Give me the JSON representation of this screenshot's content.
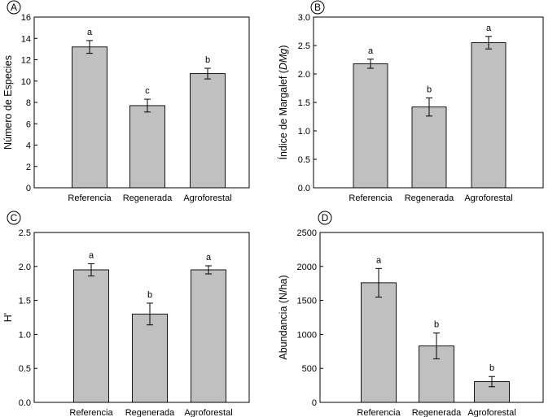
{
  "chart_data": [
    {
      "panel": "A",
      "type": "bar",
      "categories": [
        "Referencia",
        "Regenerada",
        "Agroforestal"
      ],
      "values": [
        13.2,
        7.7,
        10.7
      ],
      "errors": [
        0.6,
        0.6,
        0.5
      ],
      "significance": [
        "a",
        "c",
        "b"
      ],
      "ylabel": "Número de Especies",
      "ylabel_italic_part": "",
      "ylabel_suffix": "",
      "ylim": [
        0,
        16
      ],
      "yticks": [
        0,
        2,
        4,
        6,
        8,
        10,
        12,
        14,
        16
      ],
      "ytick_labels": [
        "0",
        "2",
        "4",
        "6",
        "8",
        "10",
        "12",
        "14",
        "16"
      ],
      "bar_color": "#c0c0c0"
    },
    {
      "panel": "B",
      "type": "bar",
      "categories": [
        "Referencia",
        "Regenerada",
        "Agroforestal"
      ],
      "values": [
        2.18,
        1.42,
        2.55
      ],
      "errors": [
        0.08,
        0.16,
        0.11
      ],
      "significance": [
        "a",
        "b",
        "a"
      ],
      "ylabel": "Índice de Margalef (",
      "ylabel_italic_part": "DMg",
      "ylabel_suffix": ")",
      "ylim": [
        0,
        3
      ],
      "yticks": [
        0,
        0.5,
        1,
        1.5,
        2,
        2.5,
        3
      ],
      "ytick_labels": [
        "0.0",
        "0.5",
        "1.0",
        "1.5",
        "2.0",
        "2.5",
        "3.0"
      ],
      "bar_color": "#c0c0c0"
    },
    {
      "panel": "C",
      "type": "bar",
      "categories": [
        "Referencia",
        "Regenerada",
        "Agroforestal"
      ],
      "values": [
        1.95,
        1.3,
        1.95
      ],
      "errors": [
        0.09,
        0.16,
        0.06
      ],
      "significance": [
        "a",
        "b",
        "a"
      ],
      "ylabel": "H'",
      "ylabel_italic_part": "",
      "ylabel_suffix": "",
      "ylim": [
        0,
        2.5
      ],
      "yticks": [
        0,
        0.5,
        1,
        1.5,
        2,
        2.5
      ],
      "ytick_labels": [
        "0.0",
        "0.5",
        "1.0",
        "1.5",
        "2.0",
        "2.5"
      ],
      "bar_color": "#c0c0c0"
    },
    {
      "panel": "D",
      "type": "bar",
      "categories": [
        "Referencia",
        "Regenerada",
        "Agroforestal"
      ],
      "values": [
        1760,
        830,
        305
      ],
      "errors": [
        210,
        190,
        75
      ],
      "significance": [
        "a",
        "b",
        "b"
      ],
      "ylabel": "Abundancia (N/ha)",
      "ylabel_italic_part": "",
      "ylabel_suffix": "",
      "ylim": [
        0,
        2500
      ],
      "yticks": [
        0,
        500,
        1000,
        1500,
        2000,
        2500
      ],
      "ytick_labels": [
        "0",
        "500",
        "1000",
        "1500",
        "2000",
        "2500"
      ],
      "bar_color": "#c0c0c0"
    }
  ]
}
